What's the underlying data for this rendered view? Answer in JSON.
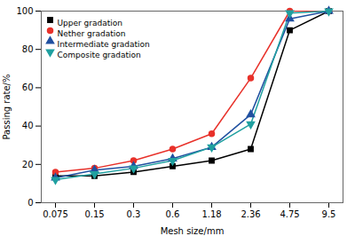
{
  "chart_data": {
    "type": "line",
    "xlabel": "Mesh size/mm",
    "ylabel": "Passing rate/%",
    "categories": [
      "0.075",
      "0.15",
      "0.3",
      "0.6",
      "1.18",
      "2.36",
      "4.75",
      "9.5"
    ],
    "series": [
      {
        "name": "Upper gradation",
        "color": "#000000",
        "marker": "square",
        "values": [
          14,
          14,
          16,
          19,
          22,
          28,
          90,
          100
        ]
      },
      {
        "name": "Nether gradation",
        "color": "#e8312a",
        "marker": "circle",
        "values": [
          16,
          18,
          22,
          28,
          36,
          65,
          100,
          100
        ]
      },
      {
        "name": "Intermediate gradation",
        "color": "#2050a0",
        "marker": "triangle-up",
        "values": [
          13,
          17,
          19,
          23,
          29,
          46,
          96,
          100
        ]
      },
      {
        "name": "Composite gradation",
        "color": "#20a0a0",
        "marker": "triangle-down",
        "values": [
          12,
          15,
          18,
          22,
          29,
          41,
          99,
          100
        ]
      }
    ],
    "ylim": [
      0,
      100
    ],
    "yticks": [
      0,
      20,
      40,
      60,
      80,
      100
    ],
    "grid": false,
    "legend": "upper left"
  }
}
